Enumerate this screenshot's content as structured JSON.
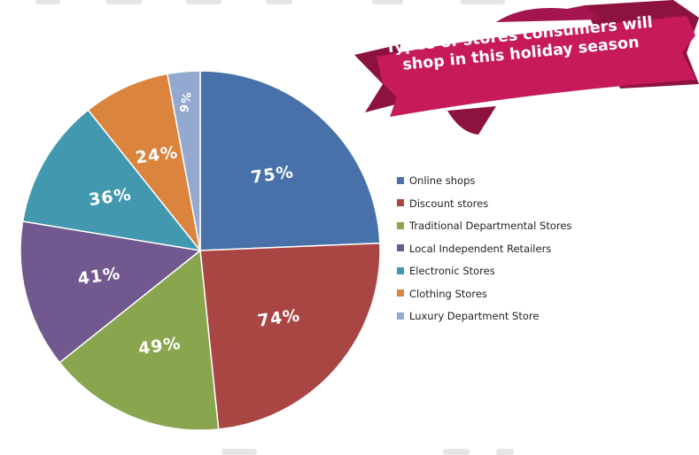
{
  "banner": {
    "title_line1": "Types of stores consumers will",
    "title_line2": "shop in this holiday season",
    "color": "#c61a5a",
    "shadow_color": "#8e1240"
  },
  "chart_data": {
    "type": "pie",
    "title": "Types of stores consumers will shop in this holiday season",
    "legend_position": "right",
    "slices": [
      {
        "name": "Online shops",
        "value": 75,
        "label": "75%",
        "color": "#4771a8"
      },
      {
        "name": "Discount stores",
        "value": 74,
        "label": "74%",
        "color": "#a94644"
      },
      {
        "name": "Traditional Departmental Stores",
        "value": 49,
        "label": "49%",
        "color": "#89a54e"
      },
      {
        "name": "Local Independent Retailers",
        "value": 41,
        "label": "41%",
        "color": "#71588f"
      },
      {
        "name": "Electronic Stores",
        "value": 36,
        "label": "36%",
        "color": "#4198af"
      },
      {
        "name": "Clothing Stores",
        "value": 24,
        "label": "24%",
        "color": "#db843d"
      },
      {
        "name": "Luxury Department Store",
        "value": 9,
        "label": "9%",
        "color": "#93a9cf"
      }
    ]
  }
}
